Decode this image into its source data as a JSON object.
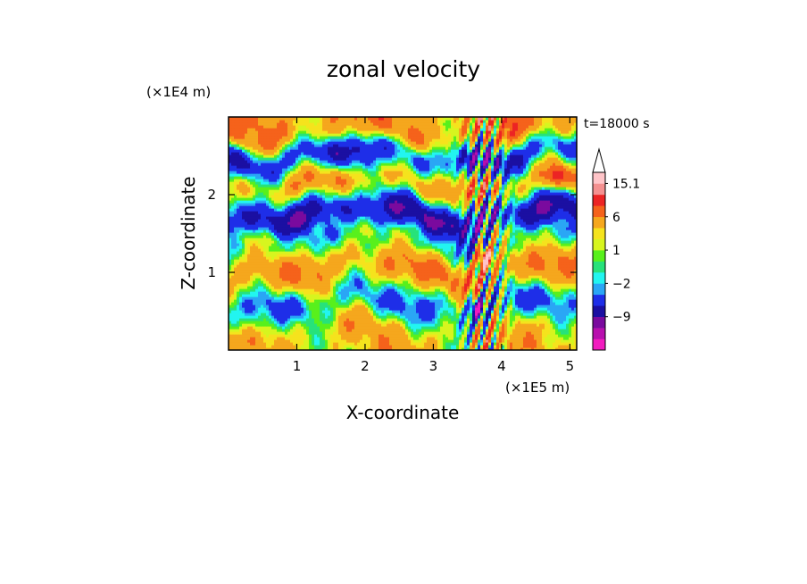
{
  "chart_data": {
    "type": "heatmap",
    "title": "zonal velocity",
    "xlabel": "X-coordinate",
    "ylabel": "Z-coordinate",
    "x_unit": "(×1E5 m)",
    "y_unit": "(×1E4 m)",
    "time_label": "t=18000 s",
    "xlim": [
      0,
      5.1
    ],
    "ylim": [
      0,
      3.0
    ],
    "x_ticks": [
      1,
      2,
      3,
      4,
      5
    ],
    "y_ticks": [
      1,
      2
    ],
    "colorbar": {
      "levels": [
        -15,
        -12,
        -9,
        -6,
        -3,
        -2,
        -1,
        0,
        1,
        2,
        3,
        6,
        9,
        12,
        15.1
      ],
      "labels": [
        "15.1",
        "6",
        "1",
        "−2",
        "−9"
      ],
      "label_values": [
        15.1,
        6,
        1,
        -2,
        -9
      ],
      "colors": [
        "#f21bbf",
        "#b80fae",
        "#7a0a9e",
        "#1b0fa2",
        "#1e2ee8",
        "#2aa6f5",
        "#22f5f0",
        "#27e27a",
        "#58f01c",
        "#d7f51f",
        "#f5e31d",
        "#f5a71d",
        "#f5621b",
        "#ec2424",
        "#f49090",
        "#ffc4c8"
      ],
      "extend_max": true
    },
    "bands": [
      {
        "z": 0.2,
        "u": 3.0
      },
      {
        "z": 0.6,
        "u": -2.0
      },
      {
        "z": 1.05,
        "u": 5.0
      },
      {
        "z": 1.45,
        "u": -1.0
      },
      {
        "z": 1.75,
        "u": -7.0
      },
      {
        "z": 2.15,
        "u": 4.0
      },
      {
        "z": 2.5,
        "u": -5.0
      },
      {
        "z": 2.85,
        "u": 5.0
      }
    ],
    "extremes": [
      {
        "x": 3.75,
        "z": 1.2,
        "u": 15.1
      },
      {
        "x": 3.65,
        "z": 0.55,
        "u": -12.0
      },
      {
        "x": 4.8,
        "z": 2.2,
        "u": 12.0
      }
    ]
  }
}
